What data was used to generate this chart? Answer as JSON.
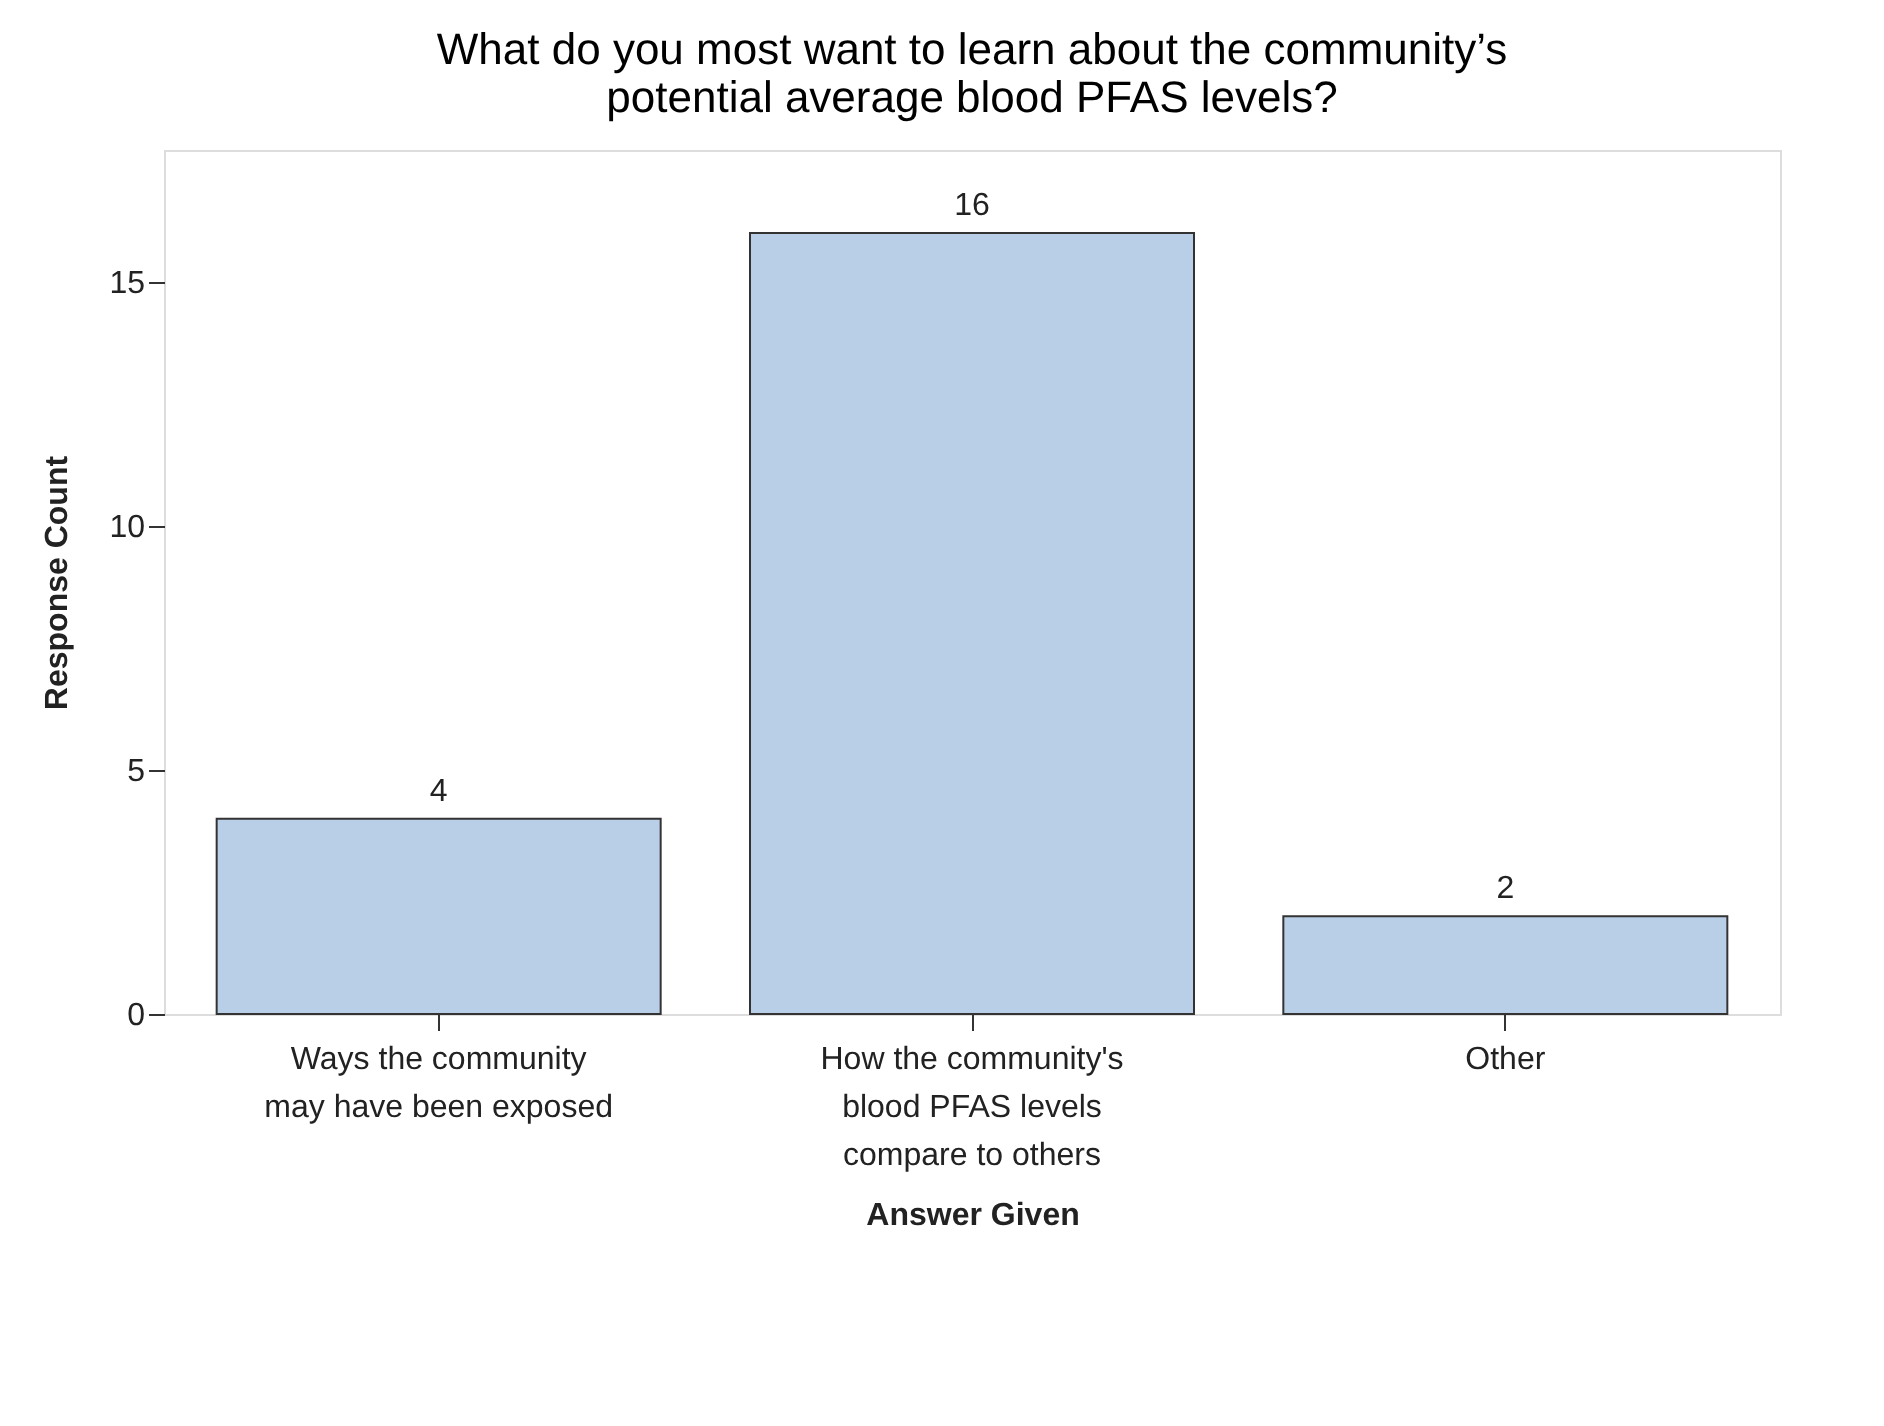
{
  "chart_data": {
    "type": "bar",
    "title": "What do you most want to learn about the community’s potential average blood PFAS levels?",
    "xlabel": "Answer Given",
    "ylabel": "Response Count",
    "categories": [
      "Ways the community may have been exposed",
      "How the community's blood PFAS levels compare to others",
      "Other"
    ],
    "values": [
      4,
      16,
      2
    ],
    "color": "#b9cfe7",
    "ylim": [
      0,
      17.7
    ],
    "yticks": [
      0,
      5,
      10,
      15
    ],
    "grid": false,
    "data_labels": true
  }
}
